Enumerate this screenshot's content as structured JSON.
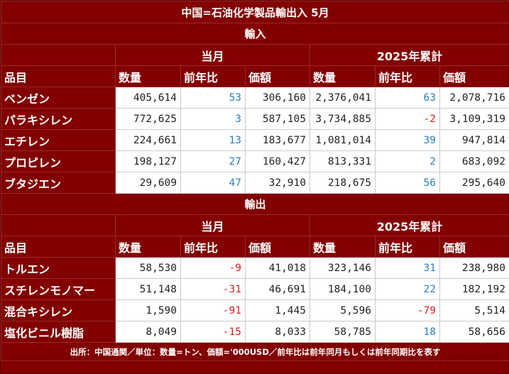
{
  "title": "中国=石油化学製品輸出入 5月",
  "colors": {
    "header_bg": "#820000",
    "cell_bg": "#ffffff",
    "positive": "#2d7fb8",
    "negative": "#e02020"
  },
  "headers": {
    "group_month": "当月",
    "group_ytd": "2025年累計",
    "item": "品目",
    "volume": "数量",
    "yoy": "前年比",
    "value": "価額"
  },
  "chart_data": {
    "type": "table",
    "sections": [
      {
        "label": "輸入",
        "columns": [
          "数量",
          "前年比",
          "価額",
          "数量",
          "前年比",
          "価額"
        ],
        "rows": [
          {
            "name": "ベンゼン",
            "month_volume": "405,614",
            "month_yoy": "53",
            "month_value": "306,160",
            "ytd_volume": "2,376,041",
            "ytd_yoy": "63",
            "ytd_value": "2,078,716"
          },
          {
            "name": "パラキシレン",
            "month_volume": "772,625",
            "month_yoy": "3",
            "month_value": "587,105",
            "ytd_volume": "3,734,885",
            "ytd_yoy": "-2",
            "ytd_value": "3,109,319"
          },
          {
            "name": "エチレン",
            "month_volume": "224,661",
            "month_yoy": "13",
            "month_value": "183,677",
            "ytd_volume": "1,081,014",
            "ytd_yoy": "39",
            "ytd_value": "947,814"
          },
          {
            "name": "プロピレン",
            "month_volume": "198,127",
            "month_yoy": "27",
            "month_value": "160,427",
            "ytd_volume": "813,331",
            "ytd_yoy": "2",
            "ytd_value": "683,092"
          },
          {
            "name": "ブタジエン",
            "month_volume": "29,609",
            "month_yoy": "47",
            "month_value": "32,910",
            "ytd_volume": "218,675",
            "ytd_yoy": "56",
            "ytd_value": "295,640"
          }
        ]
      },
      {
        "label": "輸出",
        "columns": [
          "数量",
          "前年比",
          "価額",
          "数量",
          "前年比",
          "価額"
        ],
        "rows": [
          {
            "name": "トルエン",
            "month_volume": "58,530",
            "month_yoy": "-9",
            "month_value": "41,018",
            "ytd_volume": "323,146",
            "ytd_yoy": "31",
            "ytd_value": "238,980"
          },
          {
            "name": "スチレンモノマー",
            "month_volume": "51,148",
            "month_yoy": "-31",
            "month_value": "46,691",
            "ytd_volume": "184,100",
            "ytd_yoy": "22",
            "ytd_value": "182,192"
          },
          {
            "name": "混合キシレン",
            "month_volume": "1,590",
            "month_yoy": "-91",
            "month_value": "1,445",
            "ytd_volume": "5,596",
            "ytd_yoy": "-79",
            "ytd_value": "5,514"
          },
          {
            "name": "塩化ビニル樹脂",
            "month_volume": "8,049",
            "month_yoy": "-15",
            "month_value": "8,033",
            "ytd_volume": "58,785",
            "ytd_yoy": "18",
            "ytd_value": "58,656"
          }
        ]
      }
    ]
  },
  "footnote": "出所：中国通関／単位：数量=トン、価額='000USD／前年比は前年同月もしくは前年同期比を表す"
}
